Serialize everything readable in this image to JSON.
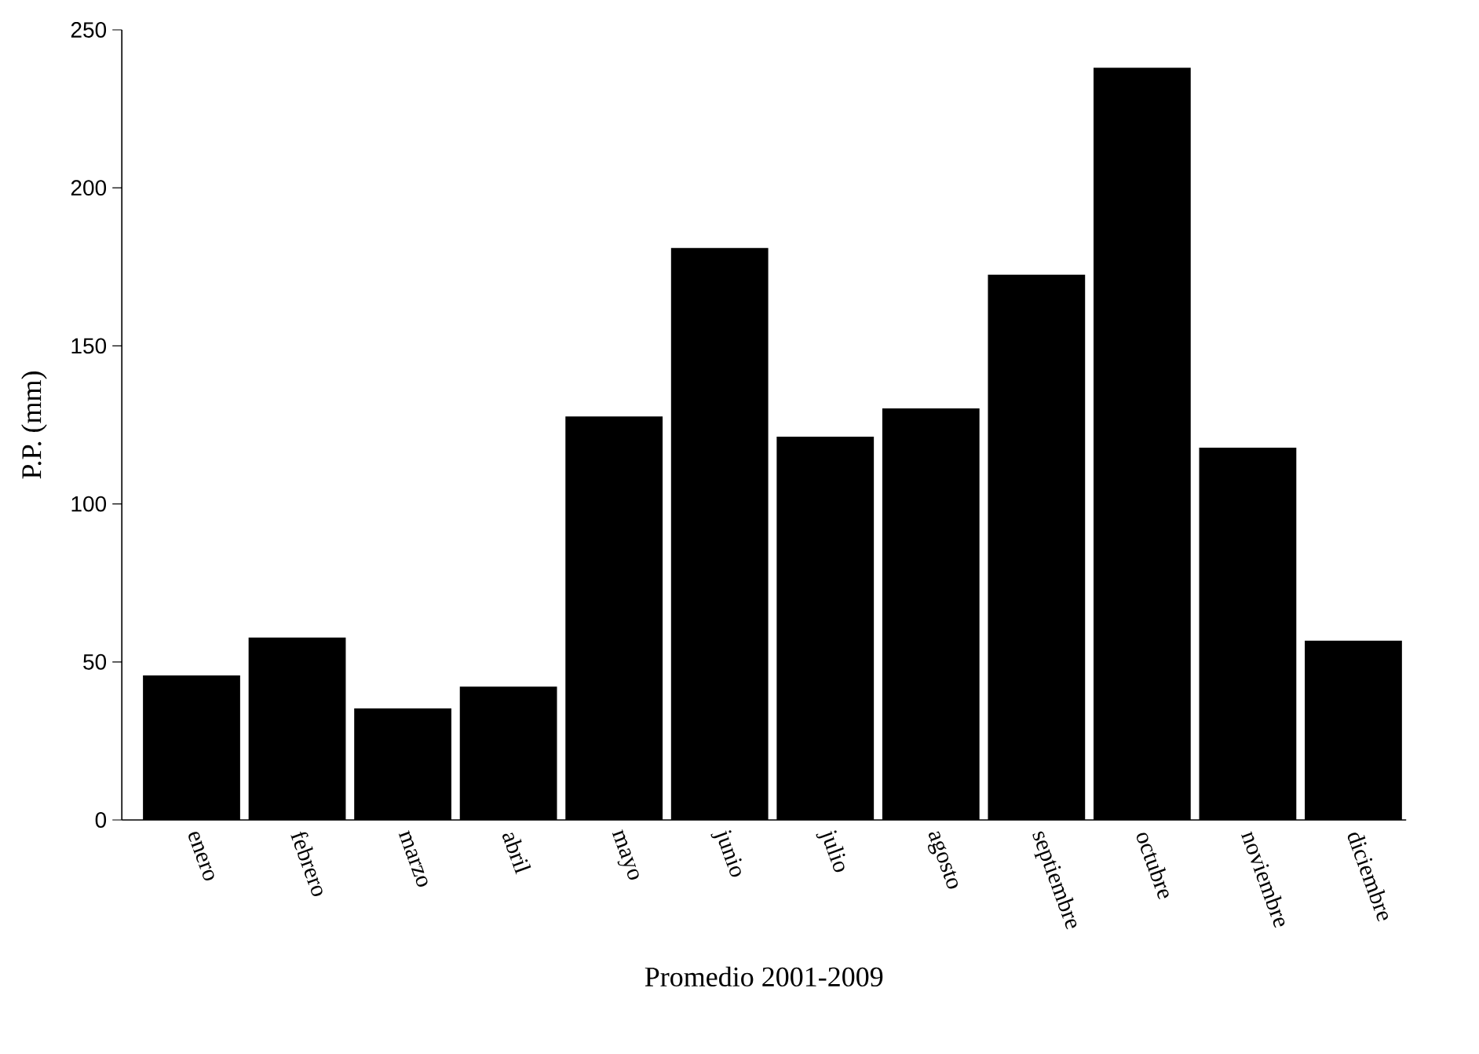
{
  "chart_data": {
    "type": "bar",
    "xlabel": "Promedio 2001-2009",
    "ylabel": "P.P. (mm)",
    "categories": [
      "enero",
      "febrero",
      "marzo",
      "abril",
      "mayo",
      "junio",
      "julio",
      "agosto",
      "septiembre",
      "octubre",
      "noviembre",
      "diciembre"
    ],
    "values": [
      45.7,
      57.7,
      35.3,
      42.2,
      127.7,
      181,
      121.3,
      130.2,
      172.5,
      238,
      117.8,
      56.7
    ],
    "color": "#000000",
    "ylim": [
      0,
      250
    ],
    "yticks": [
      0,
      50,
      100,
      150,
      200,
      250
    ]
  }
}
